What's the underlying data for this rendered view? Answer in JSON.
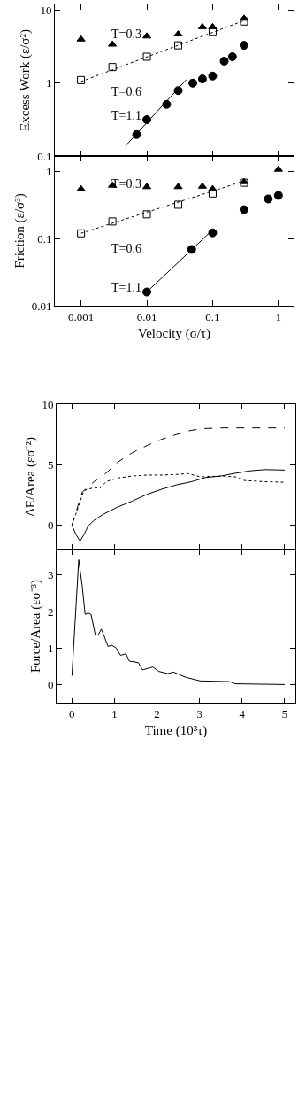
{
  "chart_data": [
    {
      "type": "scatter",
      "ylabel": "Excess Work (ε/σ²)",
      "log": "xy",
      "xlim": [
        0.0004,
        1.7
      ],
      "ylim": [
        0.1,
        12
      ],
      "xticks": [
        0.001,
        0.01,
        0.1,
        1
      ],
      "yticks": [
        0.1,
        1,
        10
      ],
      "tick_labels": "y",
      "series": [
        {
          "name": "T=0.3",
          "color": "#000000",
          "marker": "triangle",
          "x": [
            0.001,
            0.003,
            0.01,
            0.03,
            0.07,
            0.1,
            0.3
          ],
          "values": [
            4.0,
            3.4,
            4.4,
            4.7,
            5.9,
            5.9,
            7.7
          ]
        },
        {
          "name": "T=0.6",
          "color": "#000000",
          "marker": "square",
          "x": [
            0.001,
            0.003,
            0.01,
            0.03,
            0.1,
            0.3
          ],
          "values": [
            1.1,
            1.66,
            2.3,
            3.3,
            5.0,
            7.0
          ]
        },
        {
          "name": "T=1.1",
          "color": "#000000",
          "marker": "circle",
          "x": [
            0.007,
            0.01,
            0.02,
            0.03,
            0.05,
            0.07,
            0.1,
            0.15,
            0.2,
            0.3
          ],
          "values": [
            0.197,
            0.315,
            0.51,
            0.79,
            1.0,
            1.14,
            1.25,
            2.0,
            2.3,
            3.3
          ]
        },
        {
          "type": "line",
          "color": "#000000",
          "line_style": "dotted",
          "x": [
            0.001,
            0.3
          ],
          "values": [
            1.05,
            7.2
          ]
        },
        {
          "type": "line",
          "color": "#000000",
          "line_style": "solid",
          "x": [
            0.0048,
            0.04
          ],
          "values": [
            0.139,
            1.12
          ]
        }
      ]
    },
    {
      "type": "scatter",
      "xlabel": "Velocity (σ/τ)",
      "ylabel": "Friction (ε/σ³)",
      "log": "xy",
      "xlim": [
        0.0004,
        1.7
      ],
      "ylim": [
        0.01,
        1.7
      ],
      "xticks": [
        0.001,
        0.01,
        0.1,
        1
      ],
      "yticks": [
        0.01,
        0.1,
        1
      ],
      "series": [
        {
          "name": "T=0.3",
          "color": "#000000",
          "marker": "triangle",
          "x": [
            0.001,
            0.003,
            0.01,
            0.03,
            0.07,
            0.1,
            0.3,
            1
          ],
          "values": [
            0.55,
            0.62,
            0.59,
            0.59,
            0.6,
            0.55,
            0.7,
            1.07
          ]
        },
        {
          "name": "T=0.6",
          "color": "#000000",
          "marker": "square",
          "x": [
            0.001,
            0.003,
            0.01,
            0.03,
            0.1,
            0.3
          ],
          "values": [
            0.12,
            0.18,
            0.23,
            0.32,
            0.47,
            0.68
          ]
        },
        {
          "name": "T=1.1",
          "color": "#000000",
          "marker": "circle",
          "x": [
            0.01,
            0.048,
            0.1,
            0.3,
            0.7,
            1
          ],
          "values": [
            0.016,
            0.069,
            0.122,
            0.27,
            0.39,
            0.44
          ]
        },
        {
          "type": "line",
          "color": "#000000",
          "line_style": "dotted",
          "x": [
            0.001,
            0.3
          ],
          "values": [
            0.12,
            0.72
          ]
        },
        {
          "type": "line",
          "color": "#000000",
          "line_style": "solid",
          "x": [
            0.01,
            0.1
          ],
          "values": [
            0.016,
            0.135
          ]
        }
      ]
    },
    {
      "type": "line",
      "ylabel": "ΔE/Area (εσ⁻²)",
      "xlim": [
        -0.36,
        5.25
      ],
      "ylim": [
        -2,
        10
      ],
      "xticks": [
        0,
        1,
        2,
        3,
        4,
        5
      ],
      "yticks": [
        0,
        5,
        10
      ],
      "tick_labels": "y",
      "series": [
        {
          "color": "#000000",
          "line_style": "dashed",
          "x": [
            0,
            0.24,
            0.52,
            0.8,
            1.07,
            1.42,
            1.77,
            2.11,
            2.46,
            2.8,
            3.15,
            3.57,
            5
          ],
          "values": [
            0,
            2.73,
            3.6,
            4.3,
            5.2,
            6.0,
            6.6,
            7.1,
            7.5,
            7.85,
            8.0,
            8.05,
            8.05
          ]
        },
        {
          "color": "#000000",
          "line_style": "dotted",
          "x": [
            0,
            0.14,
            0.28,
            0.38,
            0.52,
            0.66,
            0.8,
            1.07,
            1.42,
            1.77,
            2.11,
            2.46,
            2.74,
            3.01,
            3.5,
            3.84,
            4.05,
            4.54,
            5
          ],
          "values": [
            0,
            1.4,
            2.85,
            2.98,
            3.1,
            3.05,
            3.6,
            3.9,
            4.07,
            4.15,
            4.15,
            4.2,
            4.27,
            4.0,
            4.07,
            4.0,
            3.7,
            3.6,
            3.55
          ]
        },
        {
          "color": "#000000",
          "line_style": "solid",
          "x": [
            0,
            0.1,
            0.19,
            0.28,
            0.38,
            0.52,
            0.73,
            1.07,
            1.42,
            1.77,
            2.11,
            2.46,
            2.8,
            3.15,
            3.5,
            3.84,
            4.19,
            4.54,
            5
          ],
          "values": [
            0,
            -0.8,
            -1.3,
            -0.8,
            -0.07,
            0.41,
            0.9,
            1.5,
            2.0,
            2.56,
            2.98,
            3.34,
            3.59,
            3.95,
            4.07,
            4.3,
            4.5,
            4.6,
            4.56
          ]
        }
      ]
    },
    {
      "type": "line",
      "xlabel": "Time (10³τ)",
      "ylabel": "Force/Area (εσ⁻³)",
      "xlim": [
        -0.36,
        5.25
      ],
      "ylim": [
        -0.5,
        3.7
      ],
      "xticks": [
        0,
        1,
        2,
        3,
        4,
        5
      ],
      "yticks": [
        0,
        1,
        2,
        3
      ],
      "series": [
        {
          "color": "#000000",
          "line_style": "solid",
          "x": [
            0,
            0.16,
            0.24,
            0.31,
            0.38,
            0.45,
            0.55,
            0.62,
            0.69,
            0.76,
            0.85,
            0.93,
            1.04,
            1.14,
            1.27,
            1.35,
            1.56,
            1.66,
            1.9,
            2.04,
            2.25,
            2.39,
            2.67,
            3.01,
            3.7,
            3.84,
            5
          ],
          "values": [
            0.24,
            3.42,
            2.72,
            1.92,
            1.96,
            1.92,
            1.36,
            1.36,
            1.52,
            1.32,
            1.04,
            1.08,
            1.0,
            0.8,
            0.84,
            0.64,
            0.6,
            0.4,
            0.48,
            0.36,
            0.3,
            0.34,
            0.2,
            0.1,
            0.08,
            0.02,
            0.0
          ]
        }
      ]
    }
  ]
}
